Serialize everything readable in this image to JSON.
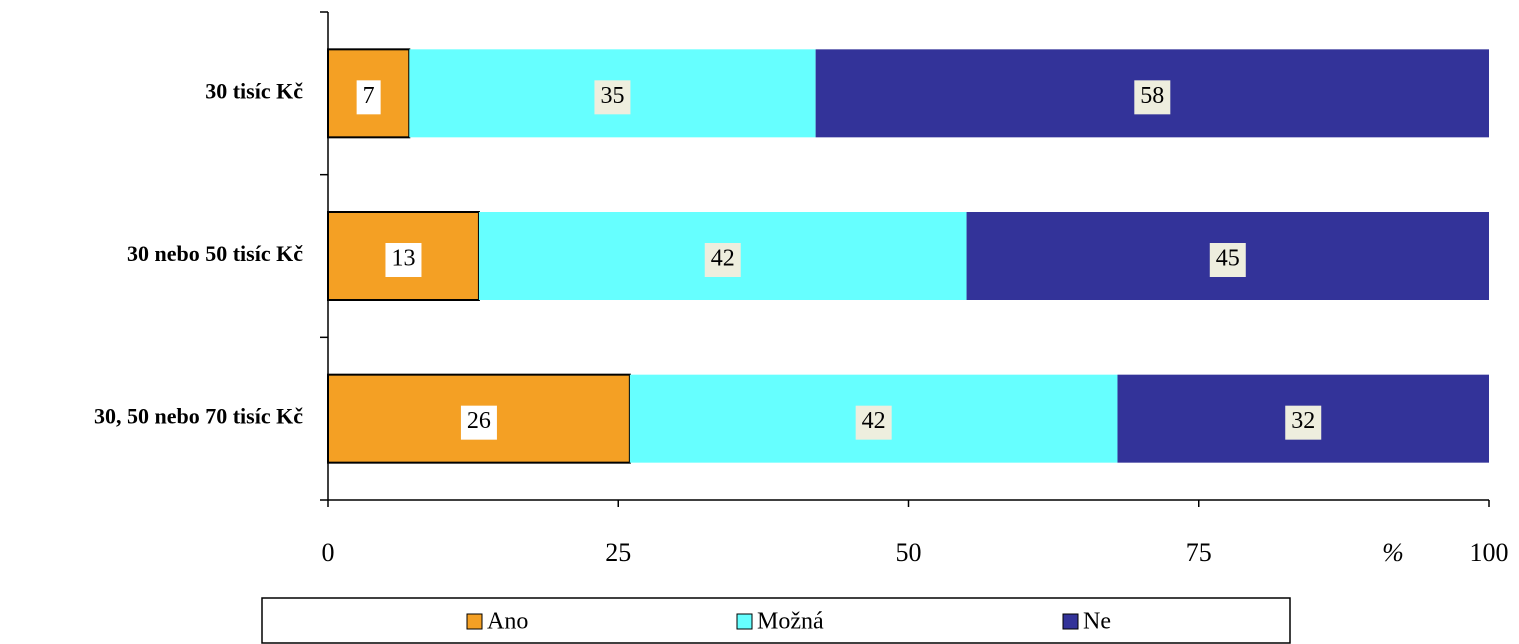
{
  "chart_data": {
    "type": "stacked_barh",
    "categories": [
      "30 tisíc Kč",
      "30 nebo 50 tisíc Kč",
      "30, 50 nebo 70 tisíc Kč"
    ],
    "series": [
      {
        "name": "Ano",
        "color": "#f4a024",
        "values": [
          7,
          13,
          26
        ]
      },
      {
        "name": "Možná",
        "color": "#66ffff",
        "values": [
          35,
          42,
          42
        ]
      },
      {
        "name": "Ne",
        "color": "#333399",
        "values": [
          58,
          45,
          32
        ]
      }
    ],
    "x_label": "%",
    "xlim": [
      0,
      100
    ],
    "xticks": [
      0,
      25,
      50,
      75,
      100
    ],
    "legend": "bottom"
  }
}
